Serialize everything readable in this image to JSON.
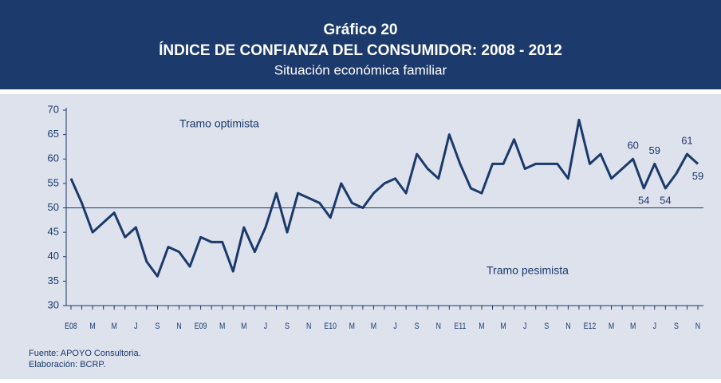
{
  "chart_data": {
    "type": "line",
    "header": [
      "Gráfico 20",
      "ÍNDICE DE CONFIANZA DEL CONSUMIDOR: 2008 -  2012"
    ],
    "subtitle": "Situación económica familiar",
    "categories": [
      "E08",
      null,
      "M",
      null,
      "M",
      null,
      "J",
      null,
      "S",
      null,
      "N",
      null,
      "E09",
      null,
      "M",
      null,
      "M",
      null,
      "J",
      null,
      "S",
      null,
      "N",
      null,
      "E10",
      null,
      "M",
      null,
      "M",
      null,
      "J",
      null,
      "S",
      null,
      "N",
      null,
      "E11",
      null,
      "M",
      null,
      "M",
      null,
      "J",
      null,
      "S",
      null,
      "N",
      null,
      "E12",
      null,
      "M",
      null,
      "M",
      null,
      "J",
      null,
      "S",
      null,
      "N"
    ],
    "series": [
      {
        "color": "#1b3a6b",
        "values": [
          56,
          51,
          45,
          47,
          49,
          44,
          46,
          39,
          36,
          42,
          41,
          38,
          44,
          43,
          43,
          37,
          46,
          41,
          46,
          53,
          45,
          53,
          52,
          51,
          48,
          55,
          51,
          50,
          53,
          55,
          56,
          53,
          61,
          58,
          56,
          65,
          59,
          54,
          53,
          59,
          59,
          64,
          58,
          59,
          59,
          59,
          56,
          68,
          59,
          61,
          56,
          58,
          60,
          54,
          59,
          54,
          57,
          61,
          59
        ],
        "value_labels": [
          null,
          null,
          null,
          null,
          null,
          null,
          null,
          null,
          null,
          null,
          null,
          null,
          null,
          null,
          null,
          null,
          null,
          null,
          null,
          null,
          null,
          null,
          null,
          null,
          null,
          null,
          null,
          null,
          null,
          null,
          null,
          null,
          null,
          null,
          null,
          null,
          null,
          null,
          null,
          null,
          null,
          null,
          null,
          null,
          null,
          null,
          null,
          null,
          null,
          null,
          null,
          null,
          "60",
          "54",
          "59",
          "54",
          null,
          "61",
          "59"
        ]
      }
    ],
    "ylim": [
      30,
      70
    ],
    "yticks": [
      30,
      35,
      40,
      45,
      50,
      55,
      60,
      65,
      70
    ],
    "reference_line": 50,
    "annotations": [
      "Tramo optimista",
      "Tramo pesimista"
    ],
    "source": [
      "Fuente: APOYO Consultoria.",
      "Elaboración: BCRP."
    ]
  }
}
